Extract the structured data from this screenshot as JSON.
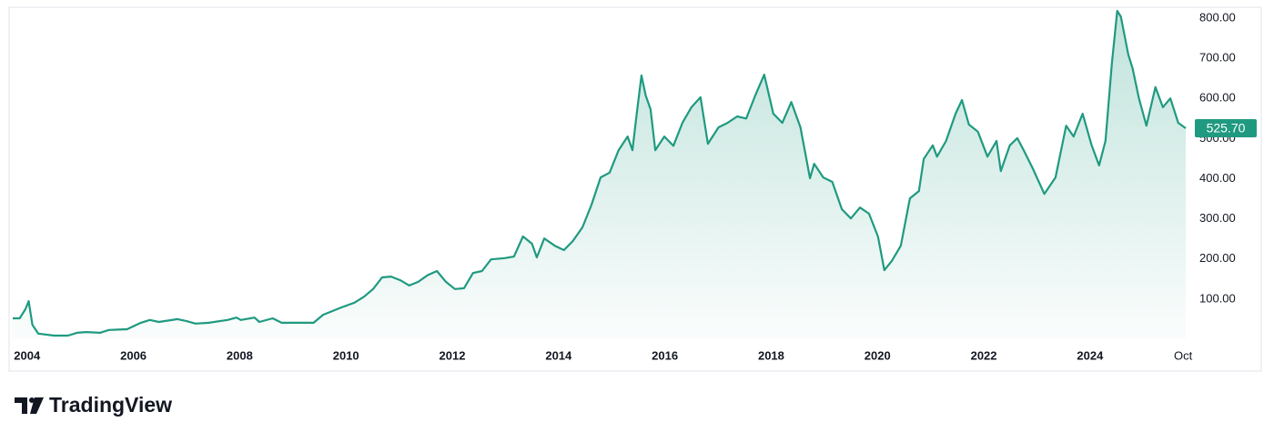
{
  "chart_data": {
    "type": "area",
    "branding": "TradingView",
    "color": "#1f9a80",
    "x": [
      2003.73,
      2003.86,
      2003.97,
      2004.03,
      2004.1,
      2004.21,
      2004.51,
      2004.77,
      2004.94,
      2005.11,
      2005.37,
      2005.54,
      2005.88,
      2006.14,
      2006.31,
      2006.48,
      2006.83,
      2007.0,
      2007.17,
      2007.42,
      2007.77,
      2007.94,
      2008.02,
      2008.28,
      2008.37,
      2008.62,
      2008.79,
      2009.05,
      2009.39,
      2009.57,
      2009.74,
      2009.91,
      2010.16,
      2010.34,
      2010.51,
      2010.68,
      2010.85,
      2011.02,
      2011.19,
      2011.36,
      2011.53,
      2011.71,
      2011.88,
      2012.05,
      2012.22,
      2012.39,
      2012.56,
      2012.73,
      2012.99,
      2013.16,
      2013.33,
      2013.5,
      2013.59,
      2013.73,
      2013.93,
      2014.1,
      2014.27,
      2014.45,
      2014.62,
      2014.79,
      2014.96,
      2015.13,
      2015.3,
      2015.39,
      2015.47,
      2015.56,
      2015.64,
      2015.73,
      2015.82,
      2015.99,
      2016.16,
      2016.33,
      2016.5,
      2016.67,
      2016.81,
      2017.01,
      2017.18,
      2017.36,
      2017.53,
      2017.7,
      2017.87,
      2018.04,
      2018.21,
      2018.38,
      2018.55,
      2018.73,
      2018.81,
      2018.98,
      2019.15,
      2019.33,
      2019.5,
      2019.67,
      2019.84,
      2020.01,
      2020.13,
      2020.27,
      2020.44,
      2020.61,
      2020.78,
      2020.87,
      2021.04,
      2021.12,
      2021.29,
      2021.47,
      2021.59,
      2021.72,
      2021.89,
      2022.07,
      2022.24,
      2022.32,
      2022.49,
      2022.63,
      2022.75,
      2022.92,
      2023.14,
      2023.35,
      2023.55,
      2023.69,
      2023.86,
      2024.03,
      2024.17,
      2024.29,
      2024.41,
      2024.51,
      2024.58,
      2024.72,
      2024.8,
      2024.92,
      2025.06,
      2025.23,
      2025.37,
      2025.51,
      2025.66,
      2025.8
    ],
    "values": [
      52,
      52,
      75,
      95,
      36,
      14,
      9,
      9,
      16,
      18,
      16,
      23,
      25,
      41,
      48,
      43,
      50,
      45,
      39,
      41,
      48,
      54,
      48,
      54,
      43,
      52,
      41,
      41,
      41,
      61,
      70,
      79,
      91,
      106,
      125,
      154,
      156,
      147,
      134,
      143,
      159,
      170,
      143,
      125,
      127,
      165,
      170,
      199,
      202,
      206,
      256,
      238,
      204,
      251,
      233,
      222,
      245,
      279,
      335,
      403,
      415,
      471,
      505,
      471,
      562,
      657,
      607,
      573,
      471,
      505,
      482,
      539,
      578,
      603,
      487,
      528,
      539,
      555,
      550,
      607,
      659,
      562,
      539,
      591,
      528,
      401,
      437,
      403,
      392,
      324,
      301,
      328,
      313,
      256,
      172,
      195,
      233,
      351,
      369,
      449,
      483,
      455,
      494,
      562,
      596,
      535,
      517,
      455,
      494,
      419,
      483,
      501,
      471,
      426,
      362,
      403,
      532,
      505,
      562,
      483,
      433,
      494,
      686,
      818,
      804,
      709,
      675,
      600,
      532,
      628,
      578,
      600,
      539,
      525.7
    ],
    "last_value": {
      "value": 525.7,
      "label": "525.70"
    },
    "xlim": [
      2003.73,
      2025.8
    ],
    "xticks": [
      2004,
      2006,
      2008,
      2010,
      2012,
      2014,
      2016,
      2018,
      2020,
      2022,
      2024,
      {
        "value": 2025.75,
        "label": "Oct"
      }
    ],
    "ylim": [
      0,
      827
    ],
    "yticks": [
      {
        "value": 100,
        "label": "100.00"
      },
      {
        "value": 200,
        "label": "200.00"
      },
      {
        "value": 300,
        "label": "300.00"
      },
      {
        "value": 400,
        "label": "400.00"
      },
      {
        "value": 500,
        "label": "500.00"
      },
      {
        "value": 600,
        "label": "600.00"
      },
      {
        "value": 700,
        "label": "700.00"
      },
      {
        "value": 800,
        "label": "800.00"
      }
    ]
  }
}
